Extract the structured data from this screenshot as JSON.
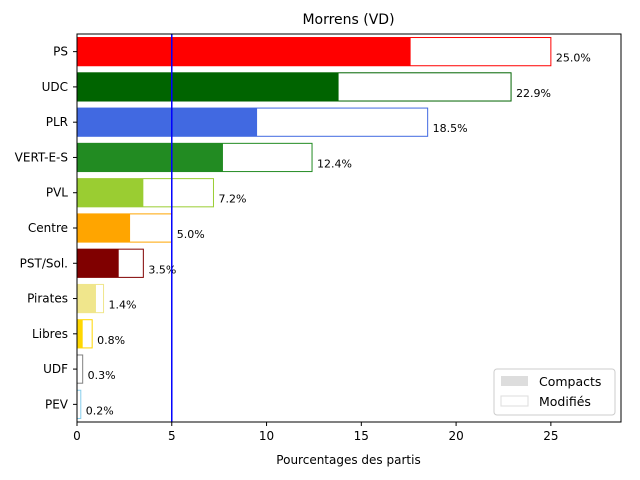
{
  "chart_data": {
    "type": "bar",
    "orientation": "horizontal",
    "title": "Morrens (VD)",
    "xlabel": "Pourcentages des partis",
    "ylabel": "",
    "xlim": [
      0,
      28.7
    ],
    "xticks": [
      0,
      5,
      10,
      15,
      20,
      25
    ],
    "threshold_line": 5,
    "threshold_color": "#0000ff",
    "grid": false,
    "legend_position": "bottom-right",
    "legend": [
      {
        "name": "Compacts",
        "style": "filled",
        "color": "#dddddd"
      },
      {
        "name": "Modifiés",
        "style": "outline",
        "color": "#dddddd"
      }
    ],
    "categories": [
      "PS",
      "UDC",
      "PLR",
      "VERT-E-S",
      "PVL",
      "Centre",
      "PST/Sol.",
      "Pirates",
      "Libres",
      "UDF",
      "PEV"
    ],
    "colors": [
      "#ff0000",
      "#006400",
      "#4169e1",
      "#228b22",
      "#9acd32",
      "#ffa500",
      "#800000",
      "#f0e68c",
      "#ffd700",
      "#808080",
      "#87ceeb"
    ],
    "series": [
      {
        "name": "Compacts",
        "values": [
          17.6,
          13.8,
          9.5,
          7.7,
          3.5,
          2.8,
          2.2,
          1.0,
          0.3,
          0.0,
          0.0
        ]
      },
      {
        "name": "Modifiés",
        "values": [
          25.0,
          22.9,
          18.5,
          12.4,
          7.2,
          5.0,
          3.5,
          1.4,
          0.8,
          0.3,
          0.2
        ]
      }
    ],
    "value_labels": [
      "25.0%",
      "22.9%",
      "18.5%",
      "12.4%",
      "7.2%",
      "5.0%",
      "3.5%",
      "1.4%",
      "0.8%",
      "0.3%",
      "0.2%"
    ]
  }
}
